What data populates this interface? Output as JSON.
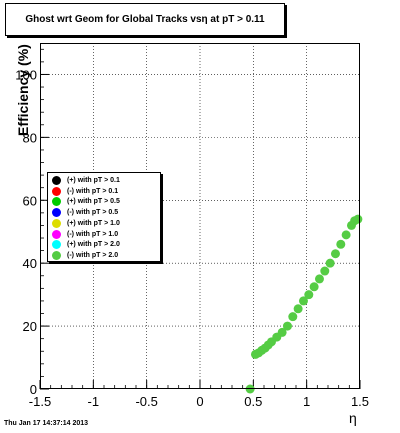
{
  "chart_data": {
    "type": "scatter",
    "title": "Ghost wrt Geom for Global Tracks vsη at pT > 0.11",
    "xlabel": "η",
    "ylabel": "Efficiency (%)",
    "xlim": [
      -1.5,
      1.5
    ],
    "ylim": [
      0,
      110
    ],
    "xticks": [
      "-1.5",
      "-1",
      "-0.5",
      "0",
      "0.5",
      "1",
      "1.5"
    ],
    "yticks": [
      "0",
      "20",
      "40",
      "60",
      "80",
      "100"
    ],
    "grid": true,
    "legend_position": "left-middle",
    "series": [
      {
        "name": "(+) with pT > 0.1",
        "color": "#000000"
      },
      {
        "name": "(-) with pT > 0.1",
        "color": "#ff0000"
      },
      {
        "name": "(+) with pT > 0.5",
        "color": "#00cc00"
      },
      {
        "name": "(-) with pT > 0.5",
        "color": "#0000ff"
      },
      {
        "name": "(+) with pT > 1.0",
        "color": "#dddd00"
      },
      {
        "name": "(-) with pT > 1.0",
        "color": "#ff00ff"
      },
      {
        "name": "(+) with pT > 2.0",
        "color": "#00ffff"
      },
      {
        "name": "(-) with pT > 2.0",
        "color": "#55cc44"
      }
    ],
    "points": {
      "x": [
        0.47,
        0.52,
        0.55,
        0.58,
        0.61,
        0.64,
        0.67,
        0.72,
        0.77,
        0.82,
        0.87,
        0.92,
        0.97,
        1.02,
        1.07,
        1.12,
        1.17,
        1.22,
        1.27,
        1.32,
        1.37,
        1.42,
        1.45,
        1.48
      ],
      "y": [
        0,
        11,
        11.5,
        12.3,
        13,
        14,
        15,
        16.5,
        18,
        20,
        23,
        25.5,
        28,
        30,
        32.5,
        35,
        37.5,
        40,
        43,
        46,
        49,
        52,
        53.5,
        54
      ]
    },
    "point_color": "#55cc44"
  },
  "footer": {
    "timestamp": "Thu Jan 17 14:37:14 2013"
  }
}
